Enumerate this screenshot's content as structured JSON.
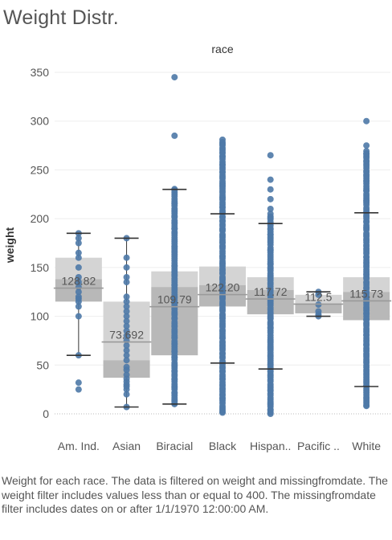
{
  "title": "Weight Distr.",
  "caption": "Weight for each race. The data is filtered on weight and missingfromdate. The weight filter includes values less than or equal to 400. The missingfromdate filter includes dates on or after 1/1/1970 12:00:00 AM.",
  "chart_data": {
    "type": "box",
    "column_header": "race",
    "ylabel": "weight",
    "xlabel": "",
    "ylim": [
      -25,
      360
    ],
    "yticks": [
      0,
      50,
      100,
      150,
      200,
      250,
      300,
      350
    ],
    "grid": true,
    "categories": [
      "Am. Ind.",
      "Asian",
      "Biracial",
      "Black",
      "Hispan..",
      "Pacific ..",
      "White"
    ],
    "series": [
      {
        "category": "Am. Ind.",
        "mean_label": "128.82",
        "mean": 128.82,
        "whisker_low": 60,
        "q1": 115,
        "median": 138,
        "q3": 160,
        "whisker_high": 185,
        "points": [
          25,
          32,
          60,
          100,
          110,
          115,
          118,
          120,
          125,
          130,
          135,
          140,
          150,
          160,
          165,
          175,
          180,
          185
        ]
      },
      {
        "category": "Asian",
        "mean_label": "73.692",
        "mean": 73.692,
        "whisker_low": 7,
        "q1": 37,
        "median": 55,
        "q3": 115,
        "whisker_high": 180,
        "points": [
          7,
          20,
          25,
          28,
          30,
          33,
          36,
          40,
          45,
          48,
          55,
          60,
          65,
          70,
          75,
          80,
          85,
          90,
          95,
          100,
          105,
          110,
          115,
          120,
          135,
          140,
          150,
          160,
          180
        ]
      },
      {
        "category": "Biracial",
        "mean_label": "109.79",
        "mean": 109.79,
        "whisker_low": 10,
        "q1": 60,
        "median": 130,
        "q3": 146,
        "whisker_high": 230,
        "points": [
          10,
          345,
          285
        ],
        "point_range": [
          10,
          230
        ]
      },
      {
        "category": "Black",
        "mean_label": "122.20",
        "mean": 122.2,
        "whisker_low": 52,
        "q1": 110,
        "median": 132,
        "q3": 151,
        "whisker_high": 205,
        "points": [],
        "point_range": [
          0,
          280
        ]
      },
      {
        "category": "Hispan..",
        "mean_label": "117.72",
        "mean": 117.72,
        "whisker_low": 46,
        "q1": 102,
        "median": 127,
        "q3": 140,
        "whisker_high": 195,
        "points": [
          0,
          265,
          240,
          230,
          220,
          210
        ],
        "point_range": [
          0,
          205
        ]
      },
      {
        "category": "Pacific ..",
        "mean_label": "112.5",
        "mean": 112.5,
        "whisker_low": 100,
        "q1": 103,
        "median": 112,
        "q3": 122,
        "whisker_high": 125,
        "points": [
          100,
          102,
          105,
          112,
          122,
          125
        ]
      },
      {
        "category": "White",
        "mean_label": "115.73",
        "mean": 115.73,
        "whisker_low": 28,
        "q1": 96,
        "median": 125,
        "q3": 140,
        "whisker_high": 206,
        "points": [
          300,
          275
        ],
        "point_range": [
          7,
          270
        ]
      }
    ]
  },
  "colors": {
    "point": "#4e79a7",
    "box_upper": "#d4d4d4",
    "box_lower": "#b8b8b8",
    "whisker": "#333333",
    "mean_line": "#9a9a9a",
    "grid": "#eeeeee",
    "axis_text": "#555555"
  }
}
